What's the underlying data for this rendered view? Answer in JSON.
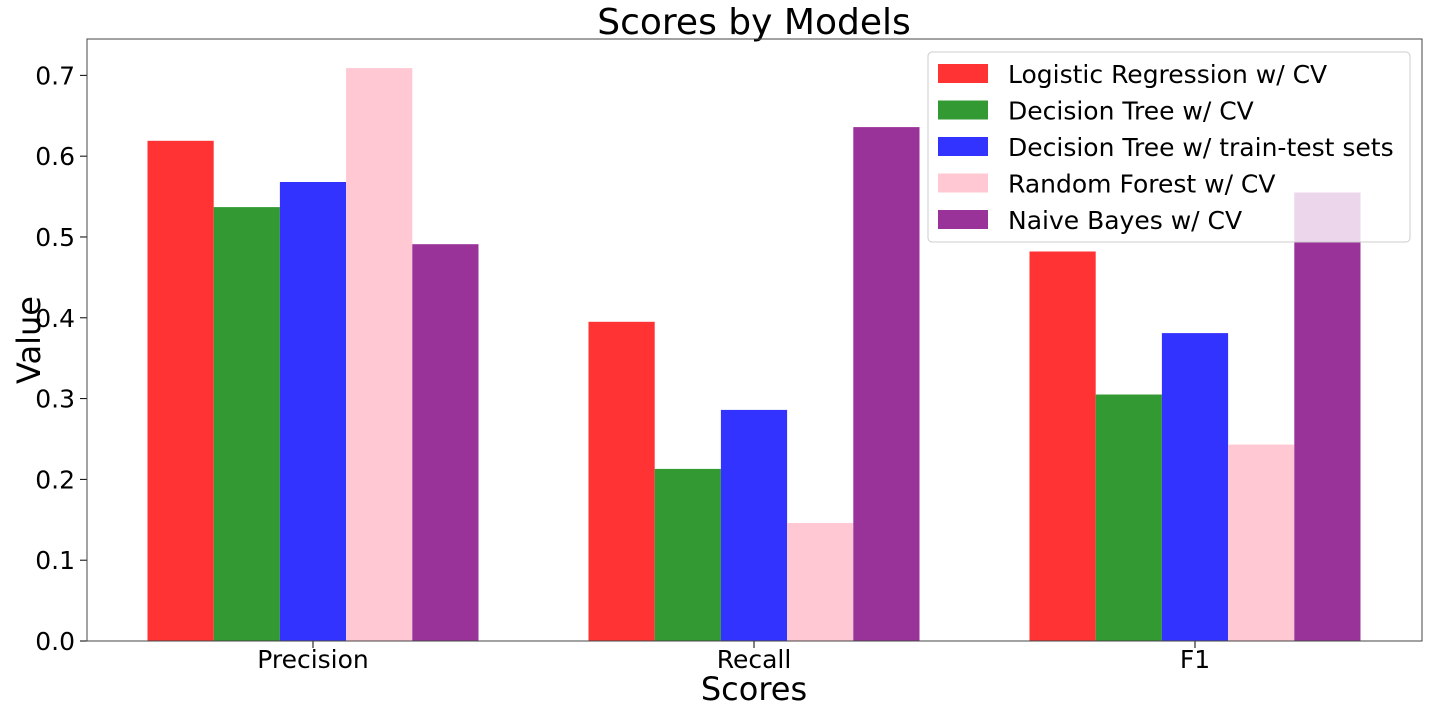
{
  "chart_data": {
    "type": "bar",
    "title": "Scores by Models",
    "xlabel": "Scores",
    "ylabel": "Value",
    "categories": [
      "Precision",
      "Recall",
      "F1"
    ],
    "ylim": [
      0,
      0.745
    ],
    "yticks": [
      "0.0",
      "0.1",
      "0.2",
      "0.3",
      "0.4",
      "0.5",
      "0.6",
      "0.7"
    ],
    "grid": false,
    "legend_position": "top-right",
    "series": [
      {
        "name": "Logistic Regression w/ CV",
        "color": "#ff3333",
        "values": [
          0.619,
          0.395,
          0.482
        ]
      },
      {
        "name": "Decision Tree w/ CV",
        "color": "#339933",
        "values": [
          0.537,
          0.213,
          0.305
        ]
      },
      {
        "name": "Decision Tree w/ train-test sets",
        "color": "#3333ff",
        "values": [
          0.568,
          0.286,
          0.381
        ]
      },
      {
        "name": "Random Forest w/ CV",
        "color": "#ffc8d2",
        "values": [
          0.709,
          0.146,
          0.243
        ]
      },
      {
        "name": "Naive Bayes w/ CV",
        "color": "#993399",
        "values": [
          0.491,
          0.636,
          0.555
        ]
      }
    ]
  }
}
